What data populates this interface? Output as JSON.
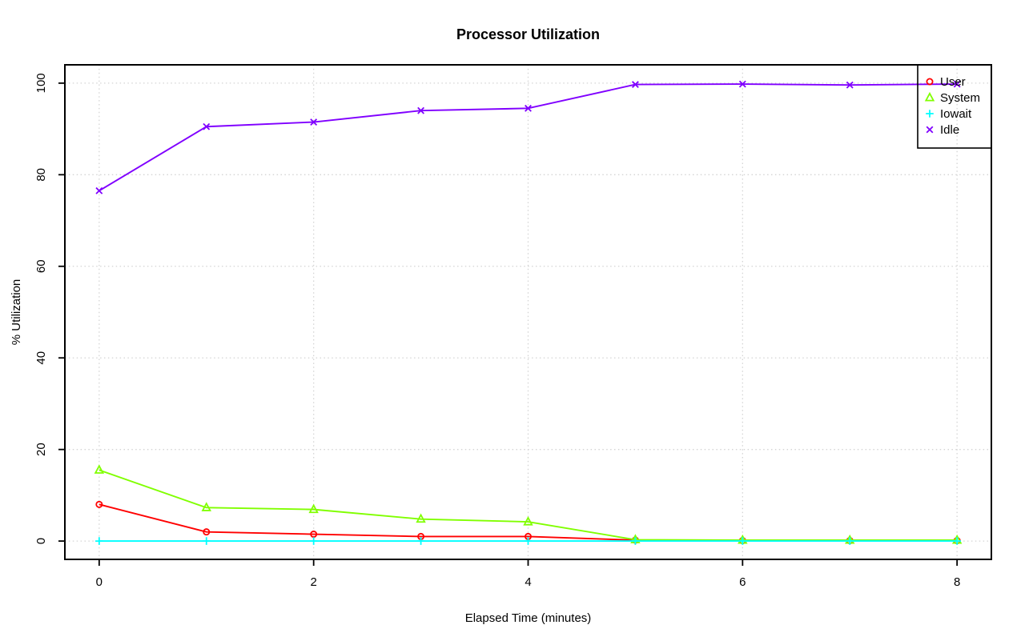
{
  "chart_data": {
    "type": "line",
    "title": "Processor Utilization",
    "xlabel": "Elapsed Time (minutes)",
    "ylabel": "% Utilization",
    "x": [
      0,
      1,
      2,
      3,
      4,
      5,
      6,
      7,
      8
    ],
    "x_ticks": [
      0,
      2,
      4,
      6,
      8
    ],
    "y_ticks": [
      0,
      20,
      40,
      60,
      80,
      100
    ],
    "xlim": [
      0,
      8
    ],
    "ylim": [
      0,
      100
    ],
    "grid": true,
    "grid_style": "dotted",
    "grid_color": "#d4d4d4",
    "axis_color": "#000000",
    "background_color": "#ffffff",
    "legend_position": "top-right",
    "legend_border": true,
    "series": [
      {
        "name": "User",
        "color": "#ff0000",
        "marker": "circle",
        "values": [
          8,
          2,
          1.5,
          1,
          1,
          0.2,
          0.1,
          0.1,
          0.1
        ]
      },
      {
        "name": "System",
        "color": "#80ff00",
        "marker": "triangle",
        "values": [
          15.5,
          7.3,
          6.9,
          4.8,
          4.2,
          0.3,
          0.2,
          0.2,
          0.2
        ]
      },
      {
        "name": "Iowait",
        "color": "#00ffff",
        "marker": "plus",
        "values": [
          0,
          0,
          0,
          0,
          0,
          0,
          0,
          0,
          0
        ]
      },
      {
        "name": "Idle",
        "color": "#8000ff",
        "marker": "x",
        "values": [
          76.5,
          90.5,
          91.5,
          94,
          94.5,
          99.7,
          99.8,
          99.6,
          99.8
        ]
      }
    ]
  }
}
